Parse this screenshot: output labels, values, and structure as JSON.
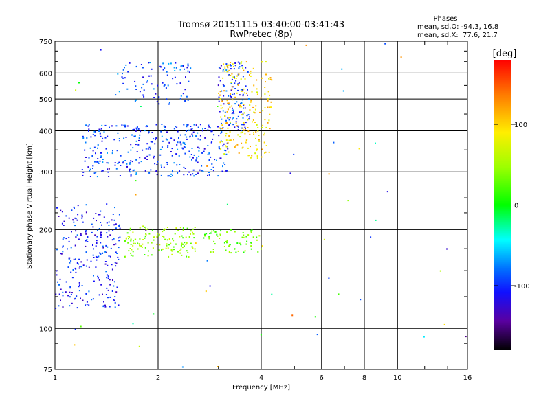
{
  "header": {
    "title_line1": "Tromsø 20151115 03:40:00-03:41:43",
    "title_line2": "RwPretec (8p)"
  },
  "phases_box": {
    "heading": "Phases",
    "line_o": "mean, sd,O: -94.3, 16.8",
    "line_x": "mean, sd,X:  77.6, 21.7"
  },
  "chart_data": {
    "type": "scatter",
    "xlabel": "Frequency [MHz]",
    "ylabel": "Stationary phase Virtual Height [km]",
    "xscale": "log",
    "yscale": "log",
    "xlim": [
      1,
      16
    ],
    "ylim": [
      75,
      750
    ],
    "x_ticks": [
      1,
      2,
      4,
      6,
      8,
      10,
      16
    ],
    "x_tick_labels": [
      "1",
      "2",
      "4",
      "6",
      "8",
      "10",
      "16"
    ],
    "y_ticks": [
      75,
      100,
      200,
      300,
      400,
      500,
      600,
      750
    ],
    "y_tick_labels": [
      "75",
      "100",
      "200",
      "300",
      "400",
      "500",
      "600",
      "750"
    ],
    "grid": true,
    "colorbar": {
      "label": "[deg]",
      "range": [
        -180,
        180
      ],
      "tick_values": [
        -100,
        0,
        100
      ],
      "tick_labels": [
        "-100",
        "0",
        "100"
      ]
    },
    "clusters": [
      {
        "name_ref": "low-F-lower-trace",
        "x_range": [
          1.0,
          1.55
        ],
        "y_range": [
          115,
          240
        ],
        "phase": -105,
        "count": 260
      },
      {
        "name_ref": "E-layer-green",
        "x_range": [
          1.6,
          2.6
        ],
        "y_range": [
          165,
          205
        ],
        "phase": 45,
        "count": 140
      },
      {
        "name_ref": "E-layer-mixed",
        "x_range": [
          2.7,
          4.0
        ],
        "y_range": [
          170,
          200
        ],
        "phase": 30,
        "count": 70
      },
      {
        "name_ref": "F-trace-blue",
        "x_range": [
          1.2,
          3.2
        ],
        "y_range": [
          290,
          420
        ],
        "phase": -95,
        "count": 360
      },
      {
        "name_ref": "F-high-blue",
        "x_range": [
          1.5,
          2.5
        ],
        "y_range": [
          480,
          650
        ],
        "phase": -90,
        "count": 90
      },
      {
        "name_ref": "F-upper-column",
        "x_range": [
          3.0,
          3.7
        ],
        "y_range": [
          400,
          650
        ],
        "phase": -100,
        "count": 120
      },
      {
        "name_ref": "F-X-trace-yellow",
        "x_range": [
          3.0,
          4.3
        ],
        "y_range": [
          330,
          650
        ],
        "phase": 95,
        "count": 200
      },
      {
        "name_ref": "sparse-scatter",
        "x_range": [
          1.0,
          16.0
        ],
        "y_range": [
          75,
          750
        ],
        "phase": 0,
        "count": 60
      }
    ]
  }
}
